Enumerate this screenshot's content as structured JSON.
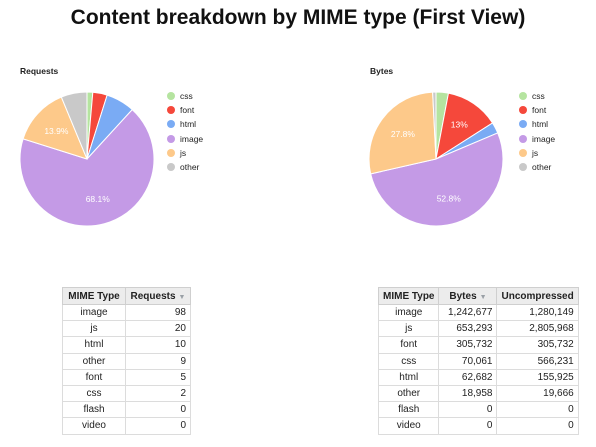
{
  "page_title": "Content breakdown by MIME type (First View)",
  "colors": {
    "css": "#b5e4a0",
    "font": "#f5483b",
    "html": "#7aabf4",
    "image": "#c49ae6",
    "js": "#fdc98a",
    "other": "#c9c9c9"
  },
  "legend": [
    "css",
    "font",
    "html",
    "image",
    "js",
    "other"
  ],
  "chart_data": [
    {
      "type": "pie",
      "title": "Requests",
      "labels": [
        "css",
        "font",
        "html",
        "image",
        "js",
        "other"
      ],
      "values": [
        2,
        5,
        10,
        98,
        20,
        9
      ],
      "slice_labels": [
        "",
        "",
        "",
        "68.1%",
        "13.9%",
        ""
      ],
      "legend_position": "right"
    },
    {
      "type": "pie",
      "title": "Bytes",
      "labels": [
        "css",
        "font",
        "html",
        "image",
        "js",
        "other"
      ],
      "values": [
        70061,
        305732,
        62682,
        1242677,
        653293,
        18958
      ],
      "slice_labels": [
        "",
        "13%",
        "",
        "52.8%",
        "27.8%",
        ""
      ],
      "legend_position": "right"
    }
  ],
  "requests_table": {
    "headers": [
      "MIME Type",
      "Requests"
    ],
    "rows": [
      [
        "image",
        "98"
      ],
      [
        "js",
        "20"
      ],
      [
        "html",
        "10"
      ],
      [
        "other",
        "9"
      ],
      [
        "font",
        "5"
      ],
      [
        "css",
        "2"
      ],
      [
        "flash",
        "0"
      ],
      [
        "video",
        "0"
      ]
    ]
  },
  "bytes_table": {
    "headers": [
      "MIME Type",
      "Bytes",
      "Uncompressed"
    ],
    "rows": [
      [
        "image",
        "1,242,677",
        "1,280,149"
      ],
      [
        "js",
        "653,293",
        "2,805,968"
      ],
      [
        "font",
        "305,732",
        "305,732"
      ],
      [
        "css",
        "70,061",
        "566,231"
      ],
      [
        "html",
        "62,682",
        "155,925"
      ],
      [
        "other",
        "18,958",
        "19,666"
      ],
      [
        "flash",
        "0",
        "0"
      ],
      [
        "video",
        "0",
        "0"
      ]
    ]
  }
}
